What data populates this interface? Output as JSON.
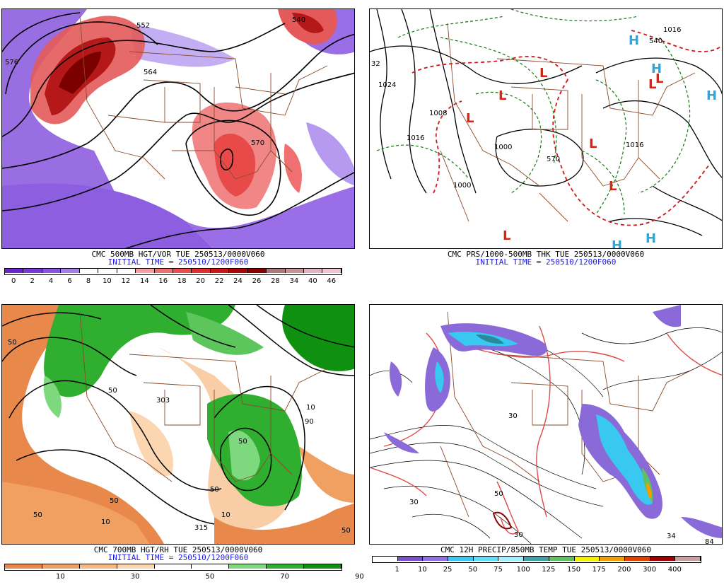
{
  "panels": [
    {
      "id": "500mb",
      "caption_line1": "CMC 500MB HGT/VOR TUE 250513/0000V060",
      "caption_line2": "INITIAL TIME = 250510/1200F060",
      "contour_labels": [
        "552",
        "540",
        "576",
        "564",
        "570"
      ],
      "colorbar": {
        "colors": [
          "#6a28c8",
          "#7a3ad4",
          "#8b55de",
          "#a380e6",
          "#ffffff",
          "#ffffff",
          "#ffffff",
          "#f4a0a0",
          "#ee7070",
          "#e85050",
          "#de3030",
          "#c81818",
          "#a80a0a",
          "#880000",
          "#aa7a7a",
          "#c89696",
          "#e0b4c0",
          "#f0c4d0"
        ],
        "ticks": [
          "0",
          "2",
          "4",
          "6",
          "8",
          "10",
          "12",
          "14",
          "16",
          "18",
          "20",
          "22",
          "24",
          "26",
          "28",
          "34",
          "40",
          "46"
        ]
      }
    },
    {
      "id": "prs",
      "caption_line1": "CMC PRS/1000-500MB THK TUE 250513/0000V060",
      "caption_line2": "INITIAL TIME = 250510/1200F060",
      "contour_labels": [
        "1024",
        "1016",
        "1008",
        "1000",
        "1000",
        "1016",
        "570",
        "540",
        "1016",
        "32"
      ],
      "highs": [
        "H",
        "H",
        "H",
        "H",
        "H"
      ],
      "lows": [
        "L",
        "L",
        "L",
        "L",
        "L",
        "L",
        "L",
        "L"
      ]
    },
    {
      "id": "700mb",
      "caption_line1": "CMC 700MB HGT/RH TUE 250513/0000V060",
      "caption_line2": "INITIAL TIME = 250510/1200F060",
      "contour_labels": [
        "50",
        "303",
        "50",
        "10",
        "50",
        "315",
        "10",
        "50",
        "10",
        "50",
        "90",
        "50",
        "50"
      ],
      "colorbar": {
        "colors": [
          "#e8884a",
          "#f0a060",
          "#f6b880",
          "#fbd6b0",
          "#ffffff",
          "#ffffff",
          "#7ed87e",
          "#30b030",
          "#109010"
        ],
        "ticks": [
          "10",
          "30",
          "50",
          "70",
          "90"
        ]
      }
    },
    {
      "id": "precip",
      "caption_line1": "CMC 12H PRECIP/850MB TEMP TUE 250513/0000V060",
      "caption_line2": "",
      "contour_labels": [
        "30",
        "30",
        "30",
        "34",
        "84",
        "50"
      ],
      "colorbar": {
        "colors": [
          "#ffffff",
          "#7a50c8",
          "#9070e0",
          "#38c8f0",
          "#60e0f8",
          "#a0f0ff",
          "#40a0a0",
          "#60c060",
          "#f0f000",
          "#f0a000",
          "#e04000",
          "#a00000",
          "#c8a0a0"
        ],
        "ticks": [
          "1",
          "10",
          "25",
          "50",
          "75",
          "100",
          "125",
          "150",
          "175",
          "200",
          "300",
          "400"
        ]
      }
    }
  ]
}
